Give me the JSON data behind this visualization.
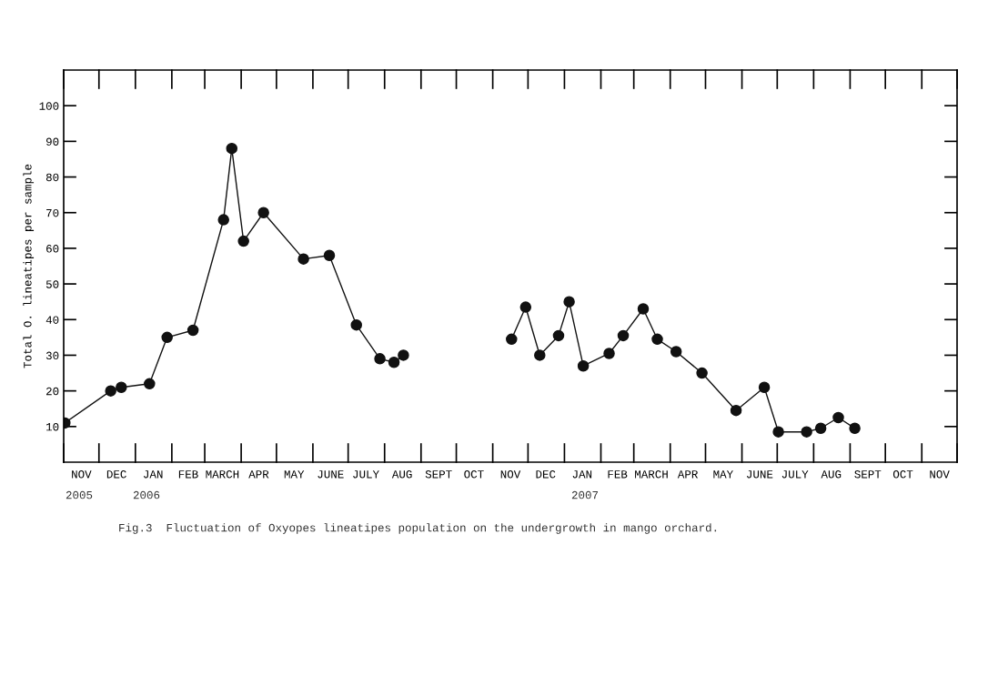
{
  "chart_data": {
    "type": "line",
    "ylabel": "Total O. lineatipes per sample",
    "xlim": [
      "2005-11-01",
      "2007-12-01"
    ],
    "ylim": [
      0,
      110
    ],
    "yticks": [
      10,
      20,
      30,
      40,
      50,
      60,
      70,
      80,
      90,
      100
    ],
    "xticks": [
      {
        "value": "2005-11-16",
        "label": "NOV"
      },
      {
        "value": "2005-12-16",
        "label": "DEC"
      },
      {
        "value": "2006-01-16",
        "label": "JAN"
      },
      {
        "value": "2006-02-15",
        "label": "FEB"
      },
      {
        "value": "2006-03-16",
        "label": "MARCH"
      },
      {
        "value": "2006-04-16",
        "label": "APR"
      },
      {
        "value": "2006-05-16",
        "label": "MAY"
      },
      {
        "value": "2006-06-16",
        "label": "JUNE"
      },
      {
        "value": "2006-07-16",
        "label": "JULY"
      },
      {
        "value": "2006-08-16",
        "label": "AUG"
      },
      {
        "value": "2006-09-16",
        "label": "SEPT"
      },
      {
        "value": "2006-10-16",
        "label": "OCT"
      },
      {
        "value": "2006-11-16",
        "label": "NOV"
      },
      {
        "value": "2006-12-16",
        "label": "DEC"
      },
      {
        "value": "2007-01-16",
        "label": "JAN"
      },
      {
        "value": "2007-02-15",
        "label": "FEB"
      },
      {
        "value": "2007-03-16",
        "label": "MARCH"
      },
      {
        "value": "2007-04-16",
        "label": "APR"
      },
      {
        "value": "2007-05-16",
        "label": "MAY"
      },
      {
        "value": "2007-06-16",
        "label": "JUNE"
      },
      {
        "value": "2007-07-16",
        "label": "JULY"
      },
      {
        "value": "2007-08-16",
        "label": "AUG"
      },
      {
        "value": "2007-09-16",
        "label": "SEPT"
      },
      {
        "value": "2007-10-16",
        "label": "OCT"
      },
      {
        "value": "2007-11-16",
        "label": "NOV"
      }
    ],
    "marker": "circle",
    "line_style": "solid",
    "grid": false,
    "legend": false,
    "series": [
      {
        "color": "#111111",
        "x": [
          "2005-11-02",
          "2005-12-11",
          "2005-12-20",
          "2006-01-13",
          "2006-01-28",
          "2006-02-19",
          "2006-03-17",
          "2006-03-24",
          "2006-04-03",
          "2006-04-20",
          "2006-05-24",
          "2006-06-15",
          "2006-07-08",
          "2006-07-28",
          "2006-08-09",
          "2006-08-17"
        ],
        "values": [
          11,
          20,
          21,
          22,
          35,
          37,
          68,
          88,
          62,
          70,
          57,
          58,
          38.5,
          29,
          28,
          30
        ]
      },
      {
        "color": "#111111",
        "x": [
          "2006-11-17",
          "2006-11-29",
          "2006-12-11",
          "2006-12-27",
          "2007-01-05",
          "2007-01-17",
          "2007-02-08",
          "2007-02-20",
          "2007-03-09",
          "2007-03-21",
          "2007-04-06",
          "2007-04-28",
          "2007-05-27",
          "2007-06-20",
          "2007-07-02",
          "2007-07-26",
          "2007-08-07",
          "2007-08-22",
          "2007-09-05"
        ],
        "values": [
          34.5,
          43.5,
          30,
          35.5,
          45,
          27,
          30.5,
          35.5,
          43,
          34.5,
          31,
          25,
          14.5,
          21,
          8.5,
          8.5,
          9.5,
          12.5,
          9.5
        ]
      }
    ],
    "annotations": [
      "2005",
      "2006",
      "2007",
      "Fig.3  Fluctuation of Oxyopes lineatipes population on the undergrowth in mango orchard."
    ]
  }
}
